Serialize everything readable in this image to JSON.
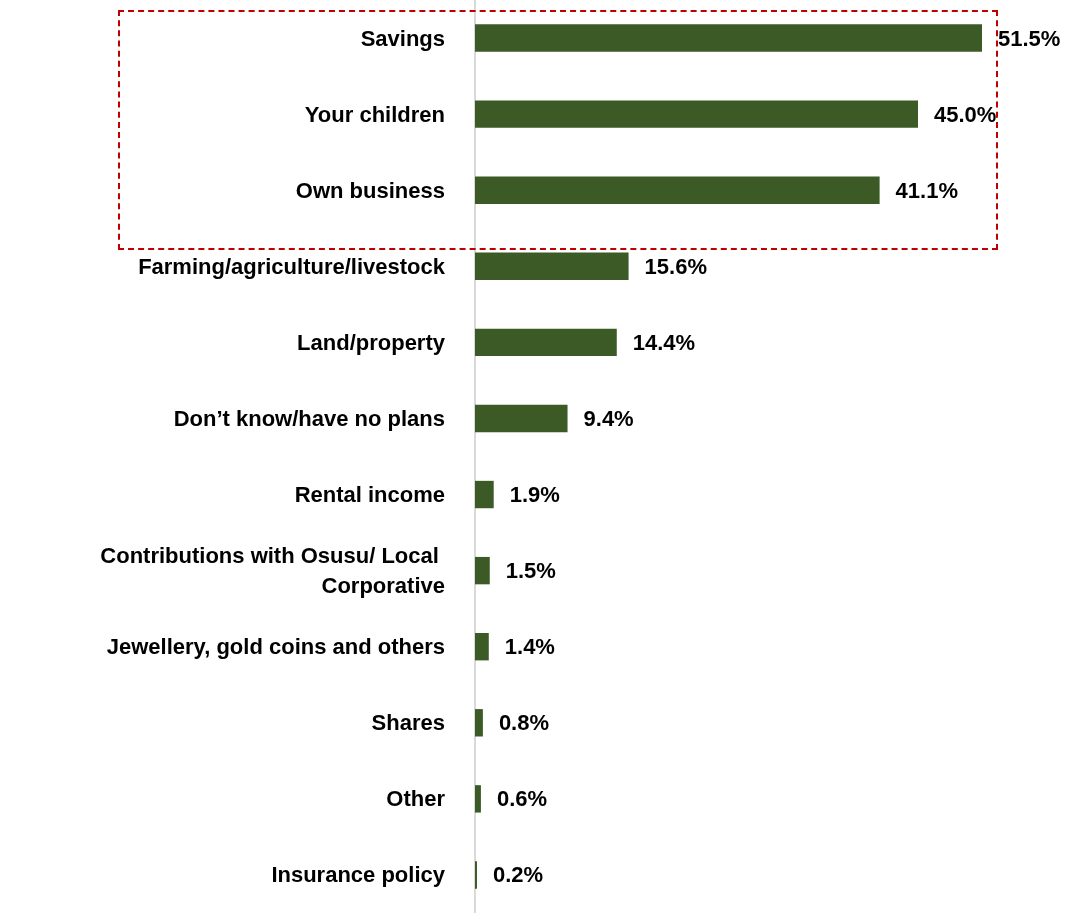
{
  "chart_data": {
    "type": "bar",
    "orientation": "horizontal",
    "categories": [
      "Savings",
      "Your children",
      "Own business",
      "Farming/agriculture/livestock",
      "Land/property",
      "Don’t know/have no plans",
      "Rental income",
      "Contributions with Osusu/ Local Corporative",
      "Jewellery, gold coins and others",
      "Shares",
      "Other",
      "Insurance policy"
    ],
    "values": [
      51.5,
      45.0,
      41.1,
      15.6,
      14.4,
      9.4,
      1.9,
      1.5,
      1.4,
      0.8,
      0.6,
      0.2
    ],
    "value_labels": [
      "51.5%",
      "45.0%",
      "41.1%",
      "15.6%",
      "14.4%",
      "9.4%",
      "1.9%",
      "1.5%",
      "1.4%",
      "0.8%",
      "0.6%",
      "0.2%"
    ],
    "color": "#3b5a26"
  }
}
